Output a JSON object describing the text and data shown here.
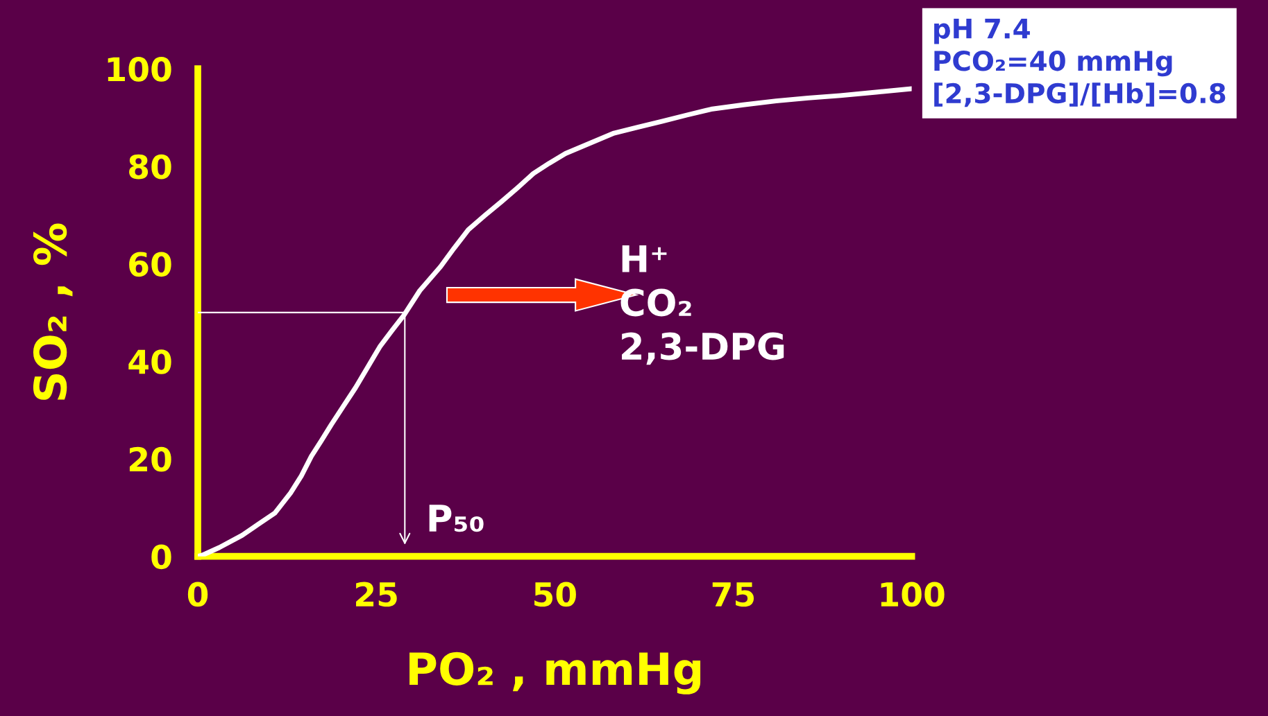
{
  "chart_data": {
    "type": "line",
    "xlabel": "PO₂ , mmHg",
    "ylabel": "SO₂ , %",
    "x": [
      0,
      0.6,
      3,
      6.2,
      8.5,
      10.8,
      13,
      14.5,
      15.9,
      17.3,
      18.7,
      20.4,
      22.1,
      23.8,
      25.5,
      27.2,
      28.9,
      31.1,
      34,
      35.9,
      37.9,
      40.2,
      42.5,
      44.8,
      47,
      49.2,
      51.5,
      54.9,
      58.3,
      61.6,
      65,
      68.5,
      71.9,
      76.4,
      81,
      85.5,
      90,
      95,
      100
    ],
    "series": [
      {
        "color": "#ffffff",
        "values": [
          0,
          0.2,
          1.8,
          4.3,
          6.6,
          8.9,
          13,
          16.5,
          20.5,
          23.7,
          27,
          30.8,
          34.6,
          38.8,
          43,
          46.3,
          49.5,
          54.5,
          59.4,
          63.2,
          67,
          69.9,
          72.7,
          75.6,
          78.5,
          80.6,
          82.6,
          84.7,
          86.8,
          88,
          89.2,
          90.5,
          91.7,
          92.6,
          93.4,
          94,
          94.5,
          95.2,
          95.9
        ]
      }
    ],
    "xlim": [
      0,
      100
    ],
    "xticks": [
      0,
      25,
      50,
      75,
      100
    ],
    "ylim": [
      0,
      100
    ],
    "yticks": [
      0,
      20,
      40,
      60,
      80,
      100
    ],
    "grid": false,
    "legend": false,
    "marker": "none",
    "line_style": "solid",
    "ref_lines": [
      {
        "axis": "y",
        "value": 50,
        "color": "#ffffff"
      }
    ],
    "annotations": [
      {
        "text": "P₅₀",
        "x": 29,
        "y": 50
      },
      "H⁺\nCO₂\n2,3-DPG",
      "pH 7.4\nPCO₂=40 mmHg\n[2,3-DPG]/[Hb]=0.8"
    ]
  }
}
